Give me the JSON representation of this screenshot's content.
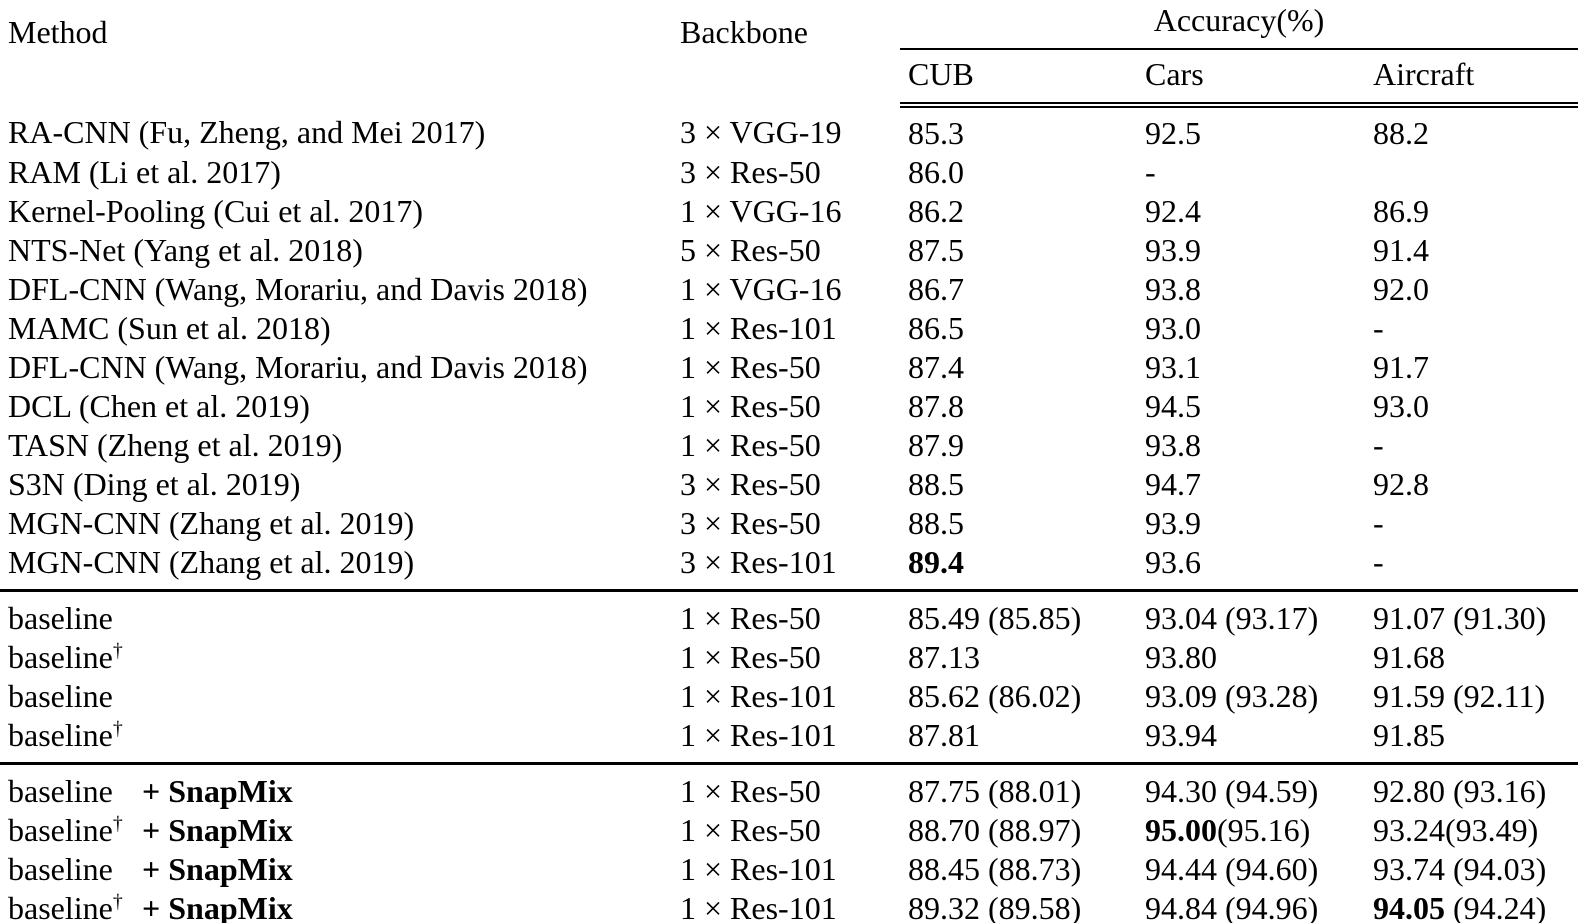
{
  "table": {
    "header": {
      "method": "Method",
      "backbone": "Backbone",
      "accuracy_group": "Accuracy(%)",
      "sub": {
        "cub": "CUB",
        "cars": "Cars",
        "aircraft": "Aircraft"
      }
    },
    "dagger_symbol": "†",
    "sections": [
      {
        "name": "published-methods",
        "rows": [
          {
            "method": "RA-CNN (Fu, Zheng, and Mei 2017)",
            "dagger": false,
            "plus": "",
            "backbone": "3 × VGG-19",
            "cub": "85.3",
            "cars": "92.5",
            "aircraft": "88.2"
          },
          {
            "method": "RAM (Li et al. 2017)",
            "dagger": false,
            "plus": "",
            "backbone": "3 × Res-50",
            "cub": "86.0",
            "cars": "-",
            "aircraft": ""
          },
          {
            "method": "Kernel-Pooling (Cui et al. 2017)",
            "dagger": false,
            "plus": "",
            "backbone": "1 × VGG-16",
            "cub": "86.2",
            "cars": "92.4",
            "aircraft": "86.9"
          },
          {
            "method": "NTS-Net (Yang et al. 2018)",
            "dagger": false,
            "plus": "",
            "backbone": "5 × Res-50",
            "cub": "87.5",
            "cars": "93.9",
            "aircraft": "91.4"
          },
          {
            "method": "DFL-CNN (Wang, Morariu, and Davis 2018)",
            "dagger": false,
            "plus": "",
            "backbone": "1 × VGG-16",
            "cub": "86.7",
            "cars": "93.8",
            "aircraft": "92.0"
          },
          {
            "method": "MAMC (Sun et al. 2018)",
            "dagger": false,
            "plus": "",
            "backbone": "1 × Res-101",
            "cub": "86.5",
            "cars": "93.0",
            "aircraft": "-"
          },
          {
            "method": "DFL-CNN (Wang, Morariu, and Davis 2018)",
            "dagger": false,
            "plus": "",
            "backbone": "1 × Res-50",
            "cub": "87.4",
            "cars": "93.1",
            "aircraft": "91.7"
          },
          {
            "method": "DCL (Chen et al. 2019)",
            "dagger": false,
            "plus": "",
            "backbone": "1 × Res-50",
            "cub": "87.8",
            "cars": "94.5",
            "aircraft": "93.0"
          },
          {
            "method": "TASN (Zheng et al. 2019)",
            "dagger": false,
            "plus": "",
            "backbone": "1 × Res-50",
            "cub": "87.9",
            "cars": "93.8",
            "aircraft": "-"
          },
          {
            "method": "S3N (Ding et al. 2019)",
            "dagger": false,
            "plus": "",
            "backbone": "3 × Res-50",
            "cub": "88.5",
            "cars": "94.7",
            "aircraft": "92.8"
          },
          {
            "method": "MGN-CNN (Zhang et al. 2019)",
            "dagger": false,
            "plus": "",
            "backbone": "3 × Res-50",
            "cub": "88.5",
            "cars": "93.9",
            "aircraft": "-"
          },
          {
            "method": "MGN-CNN (Zhang et al. 2019)",
            "dagger": false,
            "plus": "",
            "backbone": "3 × Res-101",
            "cub": "**89.4**",
            "cars": "93.6",
            "aircraft": "-"
          }
        ]
      },
      {
        "name": "baselines",
        "rows": [
          {
            "method": "baseline",
            "dagger": false,
            "plus": "",
            "backbone": "1 × Res-50",
            "cub": "85.49 (85.85)",
            "cars": "93.04 (93.17)",
            "aircraft": "91.07 (91.30)"
          },
          {
            "method": "baseline",
            "dagger": true,
            "plus": "",
            "backbone": "1 × Res-50",
            "cub": "87.13",
            "cars": "93.80",
            "aircraft": "91.68"
          },
          {
            "method": "baseline",
            "dagger": false,
            "plus": "",
            "backbone": "1 × Res-101",
            "cub": "85.62 (86.02)",
            "cars": "93.09 (93.28)",
            "aircraft": "91.59 (92.11)"
          },
          {
            "method": "baseline",
            "dagger": true,
            "plus": "",
            "backbone": "1 × Res-101",
            "cub": "87.81",
            "cars": "93.94",
            "aircraft": "91.85"
          }
        ]
      },
      {
        "name": "baselines-plus-snapmix",
        "rows": [
          {
            "method": "baseline",
            "dagger": false,
            "plus": "+ SnapMix",
            "backbone": "1 × Res-50",
            "cub": "87.75 (88.01)",
            "cars": "94.30 (94.59)",
            "aircraft": "92.80 (93.16)"
          },
          {
            "method": "baseline",
            "dagger": true,
            "plus": "+ SnapMix",
            "backbone": "1 × Res-50",
            "cub": "88.70 (88.97)",
            "cars": "**95.00**(95.16)",
            "aircraft": "93.24(93.49)"
          },
          {
            "method": "baseline",
            "dagger": false,
            "plus": "+ SnapMix",
            "backbone": "1 × Res-101",
            "cub": "88.45 (88.73)",
            "cars": "94.44 (94.60)",
            "aircraft": "93.74 (94.03)"
          },
          {
            "method": "baseline",
            "dagger": true,
            "plus": "+ SnapMix",
            "backbone": "1 × Res-101",
            "cub": "89.32 (89.58)",
            "cars": "94.84 (94.96)",
            "aircraft": "**94.05** (94.24)"
          }
        ]
      }
    ]
  }
}
